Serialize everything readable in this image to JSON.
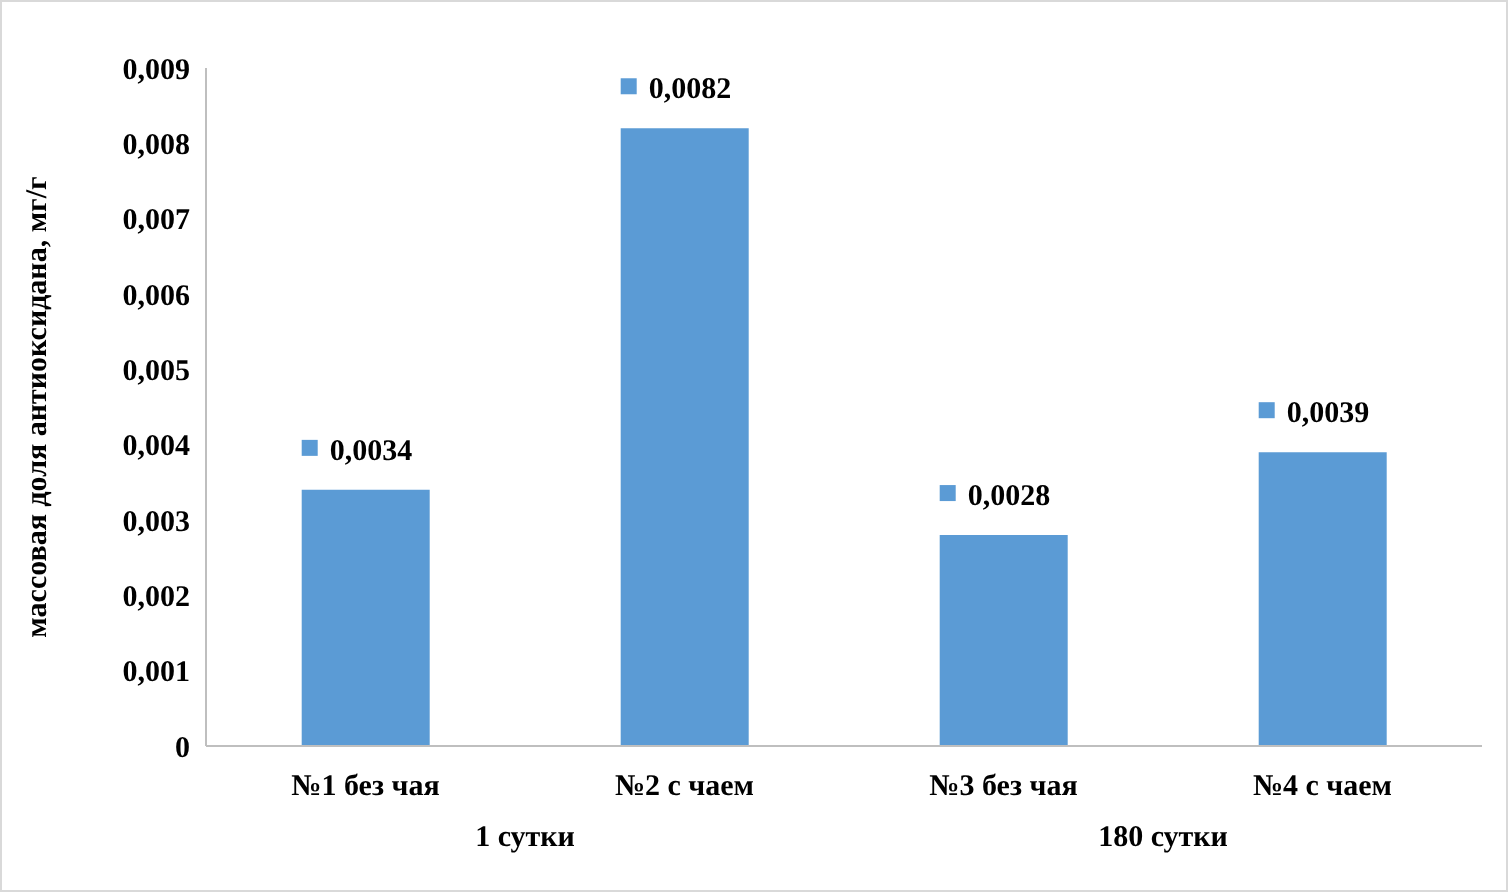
{
  "chart_data": {
    "type": "bar",
    "ylabel": "массовая доля антиоксидана, мг/г",
    "categories": [
      "№1 без чая",
      "№2 с чаем",
      "№3 без чая",
      "№4 с чаем"
    ],
    "values": [
      0.0034,
      0.0082,
      0.0028,
      0.0039
    ],
    "value_labels": [
      "0,0034",
      "0,0082",
      "0,0028",
      "0,0039"
    ],
    "color": "#5b9bd5",
    "ylim": [
      0,
      0.009
    ],
    "yticks": [
      0,
      {
        "value": 0.001,
        "label": "0,001"
      },
      {
        "value": 0.002,
        "label": "0,002"
      },
      {
        "value": 0.003,
        "label": "0,003"
      },
      {
        "value": 0.004,
        "label": "0,004"
      },
      {
        "value": 0.005,
        "label": "0,005"
      },
      {
        "value": 0.006,
        "label": "0,006"
      },
      {
        "value": 0.007,
        "label": "0,007"
      },
      {
        "value": 0.008,
        "label": "0,008"
      },
      {
        "value": 0.009,
        "label": "0,009"
      }
    ],
    "annotations": [
      "1 сутки",
      "180 сутки"
    ],
    "grid": false,
    "legend": false
  }
}
